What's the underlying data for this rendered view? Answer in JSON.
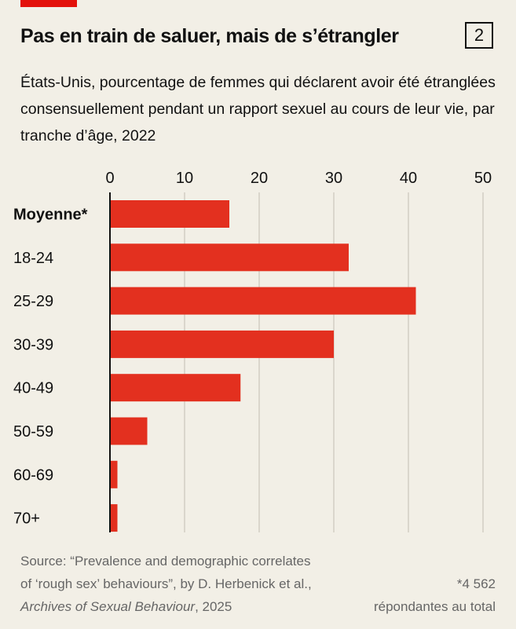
{
  "header": {
    "title": "Pas en train de saluer, mais de s’étrangler",
    "chart_number": "2",
    "subtitle": "États-Unis, pourcentage de femmes qui déclarent avoir été étranglées consensuellement pendant un rapport sexuel au cours de leur vie, par tranche d’âge, 2022"
  },
  "colors": {
    "accent": "#e3120b",
    "bar": "#e3301f",
    "background": "#f2efe6",
    "grid": "#cbc6bb"
  },
  "chart_data": {
    "type": "bar",
    "orientation": "horizontal",
    "categories": [
      "Moyenne*",
      "18-24",
      "25-29",
      "30-39",
      "40-49",
      "50-59",
      "60-69",
      "70+"
    ],
    "values": [
      16,
      32,
      41,
      30,
      17.5,
      5,
      1,
      1
    ],
    "emphasized_category": "Moyenne*",
    "xlim": [
      0,
      50
    ],
    "xticks": [
      "0",
      "10",
      "20",
      "30",
      "40",
      "50"
    ],
    "grid": true,
    "title": "Pas en train de saluer, mais de s’étrangler",
    "xlabel": "",
    "ylabel": ""
  },
  "footer": {
    "source_line1": "Source: “Prevalence and demographic correlates",
    "source_line2": "of ‘rough sex’ behaviours”, by D. Herbenick et al.,",
    "source_journal": "Archives of Sexual Behaviour",
    "source_year": ", 2025",
    "footnote_line1": "*4 562",
    "footnote_line2": "répondantes au total"
  }
}
